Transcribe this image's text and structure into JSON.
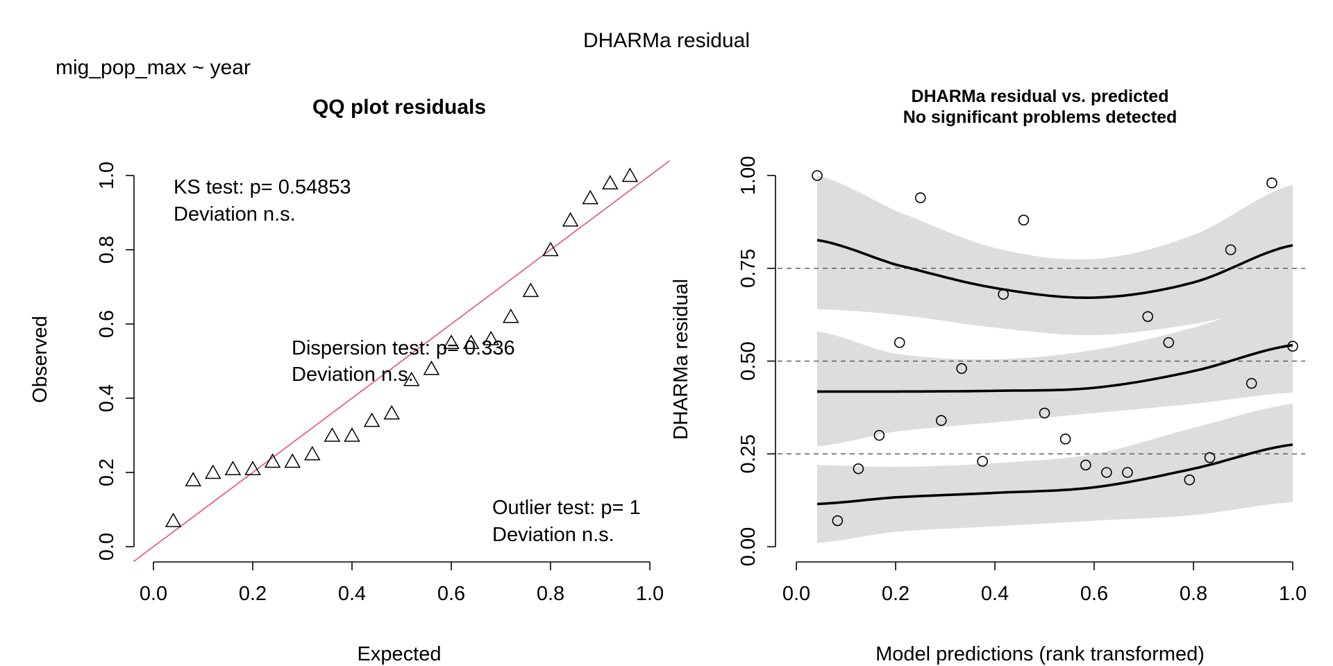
{
  "figure": {
    "main_title": "DHARMa residual",
    "formula": "mig_pop_max ~ year"
  },
  "chart_data": [
    {
      "type": "scatter",
      "title": "QQ plot residuals",
      "xlabel": "Expected",
      "ylabel": "Observed",
      "xlim": [
        0.0,
        1.0
      ],
      "ylim": [
        0.0,
        1.0
      ],
      "x_ticks": [
        "0.0",
        "0.2",
        "0.4",
        "0.6",
        "0.8",
        "1.0"
      ],
      "y_ticks": [
        "0.0",
        "0.2",
        "0.4",
        "0.6",
        "0.8",
        "1.0"
      ],
      "marker": "triangle",
      "reference_line": {
        "color": "#DF536B",
        "slope": 1,
        "intercept": 0
      },
      "points": [
        {
          "x": 0.04,
          "y": 0.07
        },
        {
          "x": 0.08,
          "y": 0.18
        },
        {
          "x": 0.12,
          "y": 0.2
        },
        {
          "x": 0.16,
          "y": 0.21
        },
        {
          "x": 0.2,
          "y": 0.21
        },
        {
          "x": 0.24,
          "y": 0.23
        },
        {
          "x": 0.28,
          "y": 0.23
        },
        {
          "x": 0.32,
          "y": 0.25
        },
        {
          "x": 0.36,
          "y": 0.3
        },
        {
          "x": 0.4,
          "y": 0.3
        },
        {
          "x": 0.44,
          "y": 0.34
        },
        {
          "x": 0.48,
          "y": 0.36
        },
        {
          "x": 0.52,
          "y": 0.45
        },
        {
          "x": 0.56,
          "y": 0.48
        },
        {
          "x": 0.6,
          "y": 0.55
        },
        {
          "x": 0.64,
          "y": 0.55
        },
        {
          "x": 0.68,
          "y": 0.56
        },
        {
          "x": 0.72,
          "y": 0.62
        },
        {
          "x": 0.76,
          "y": 0.69
        },
        {
          "x": 0.8,
          "y": 0.8
        },
        {
          "x": 0.84,
          "y": 0.88
        },
        {
          "x": 0.88,
          "y": 0.94
        },
        {
          "x": 0.92,
          "y": 0.98
        },
        {
          "x": 0.96,
          "y": 1.0
        }
      ],
      "annotations": {
        "ks_line1": "KS test: p= 0.54853",
        "ks_line2": "Deviation  n.s.",
        "disp_line1": "Dispersion test: p= 0.336",
        "disp_line2": "Deviation  n.s.",
        "out_line1": "Outlier test: p= 1",
        "out_line2": "Deviation  n.s."
      }
    },
    {
      "type": "scatter",
      "title_line1": "DHARMa residual vs. predicted",
      "title_line2": "No significant problems detected",
      "xlabel": "Model predictions (rank transformed)",
      "ylabel": "DHARMa residual",
      "xlim": [
        0.0,
        1.0
      ],
      "ylim": [
        0.0,
        1.0
      ],
      "x_ticks": [
        "0.0",
        "0.2",
        "0.4",
        "0.6",
        "0.8",
        "1.0"
      ],
      "y_ticks": [
        "0.00",
        "0.25",
        "0.50",
        "0.75",
        "1.00"
      ],
      "marker": "circle",
      "hlines": [
        0.25,
        0.5,
        0.75
      ],
      "band_color": "#DDDDDD",
      "points": [
        {
          "x": 0.042,
          "y": 1.0
        },
        {
          "x": 0.083,
          "y": 0.07
        },
        {
          "x": 0.125,
          "y": 0.21
        },
        {
          "x": 0.167,
          "y": 0.3
        },
        {
          "x": 0.208,
          "y": 0.55
        },
        {
          "x": 0.25,
          "y": 0.94
        },
        {
          "x": 0.292,
          "y": 0.34
        },
        {
          "x": 0.333,
          "y": 0.48
        },
        {
          "x": 0.375,
          "y": 0.23
        },
        {
          "x": 0.417,
          "y": 0.68
        },
        {
          "x": 0.458,
          "y": 0.88
        },
        {
          "x": 0.5,
          "y": 0.36
        },
        {
          "x": 0.542,
          "y": 0.29
        },
        {
          "x": 0.583,
          "y": 0.22
        },
        {
          "x": 0.625,
          "y": 0.2
        },
        {
          "x": 0.667,
          "y": 0.2
        },
        {
          "x": 0.708,
          "y": 0.62
        },
        {
          "x": 0.75,
          "y": 0.55
        },
        {
          "x": 0.792,
          "y": 0.18
        },
        {
          "x": 0.833,
          "y": 0.24
        },
        {
          "x": 0.875,
          "y": 0.8
        },
        {
          "x": 0.917,
          "y": 0.44
        },
        {
          "x": 0.958,
          "y": 0.98
        },
        {
          "x": 1.0,
          "y": 0.54
        }
      ],
      "quantile_series": [
        {
          "quantile": 0.75,
          "x": [
            0.042,
            0.2,
            0.4,
            0.6,
            0.8,
            1.0
          ],
          "fit": [
            0.826,
            0.76,
            0.697,
            0.671,
            0.712,
            0.812
          ],
          "lower": [
            0.64,
            0.625,
            0.59,
            0.57,
            0.6,
            0.655
          ],
          "upper": [
            1.0,
            0.905,
            0.805,
            0.775,
            0.84,
            0.975
          ]
        },
        {
          "quantile": 0.5,
          "x": [
            0.042,
            0.2,
            0.4,
            0.6,
            0.8,
            1.0
          ],
          "fit": [
            0.418,
            0.418,
            0.42,
            0.428,
            0.473,
            0.543
          ],
          "lower": [
            0.27,
            0.31,
            0.335,
            0.36,
            0.385,
            0.415
          ],
          "upper": [
            0.58,
            0.52,
            0.505,
            0.53,
            0.59,
            0.675
          ]
        },
        {
          "quantile": 0.25,
          "x": [
            0.042,
            0.2,
            0.4,
            0.6,
            0.8,
            1.0
          ],
          "fit": [
            0.115,
            0.133,
            0.145,
            0.16,
            0.21,
            0.275
          ],
          "lower": [
            0.01,
            0.04,
            0.055,
            0.07,
            0.085,
            0.12
          ],
          "upper": [
            0.22,
            0.215,
            0.225,
            0.25,
            0.32,
            0.385
          ]
        }
      ]
    }
  ]
}
